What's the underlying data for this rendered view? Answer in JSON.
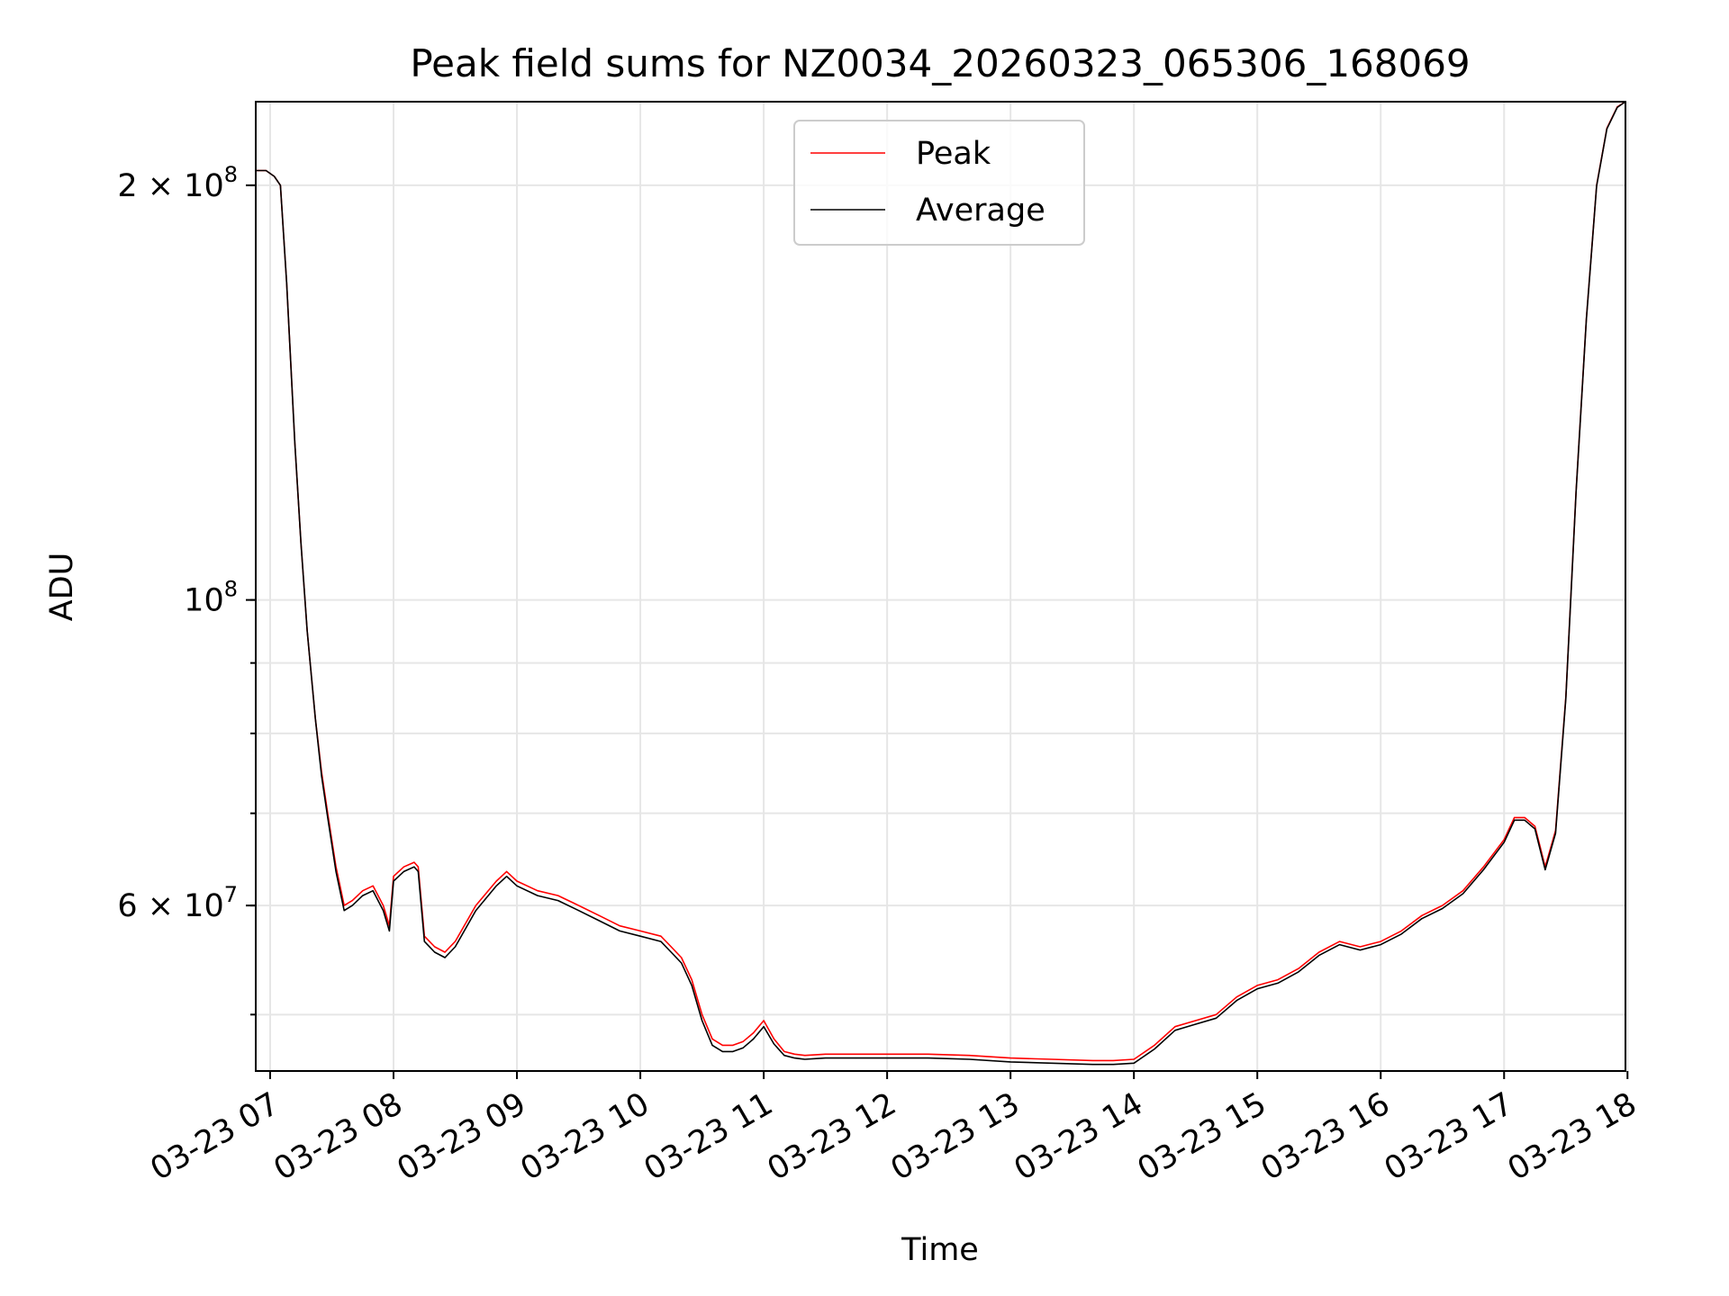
{
  "chart_data": {
    "type": "line",
    "title": "Peak field sums for NZ0034_20260323_065306_168069",
    "xlabel": "Time",
    "ylabel": "ADU",
    "y_scale": "log",
    "grid": true,
    "legend_position": "upper center",
    "xlim": [
      "2026-03-23 06:53",
      "2026-03-23 17:59"
    ],
    "ylim": [
      45500000,
      230000000
    ],
    "x_ticks": [
      "03-23 07",
      "03-23 08",
      "03-23 09",
      "03-23 10",
      "03-23 11",
      "03-23 12",
      "03-23 13",
      "03-23 14",
      "03-23 15",
      "03-23 16",
      "03-23 17",
      "03-23 18"
    ],
    "y_ticks": [
      {
        "value": 200000000,
        "base": "2 × 10",
        "exp": "8"
      },
      {
        "value": 100000000,
        "base": "10",
        "exp": "8"
      },
      {
        "value": 60000000,
        "base": "6 × 10",
        "exp": "7"
      }
    ],
    "series": [
      {
        "name": "Peak",
        "color": "#ff0000",
        "x": [
          "2026-03-23 06:53",
          "2026-03-23 06:58",
          "2026-03-23 07:02",
          "2026-03-23 07:05",
          "2026-03-23 07:08",
          "2026-03-23 07:12",
          "2026-03-23 07:15",
          "2026-03-23 07:18",
          "2026-03-23 07:22",
          "2026-03-23 07:25",
          "2026-03-23 07:28",
          "2026-03-23 07:32",
          "2026-03-23 07:36",
          "2026-03-23 07:40",
          "2026-03-23 07:45",
          "2026-03-23 07:50",
          "2026-03-23 07:55",
          "2026-03-23 07:58",
          "2026-03-23 08:00",
          "2026-03-23 08:05",
          "2026-03-23 08:10",
          "2026-03-23 08:12",
          "2026-03-23 08:15",
          "2026-03-23 08:20",
          "2026-03-23 08:25",
          "2026-03-23 08:30",
          "2026-03-23 08:40",
          "2026-03-23 08:50",
          "2026-03-23 08:55",
          "2026-03-23 09:00",
          "2026-03-23 09:10",
          "2026-03-23 09:20",
          "2026-03-23 09:30",
          "2026-03-23 09:40",
          "2026-03-23 09:50",
          "2026-03-23 10:00",
          "2026-03-23 10:10",
          "2026-03-23 10:15",
          "2026-03-23 10:20",
          "2026-03-23 10:25",
          "2026-03-23 10:30",
          "2026-03-23 10:35",
          "2026-03-23 10:40",
          "2026-03-23 10:45",
          "2026-03-23 10:50",
          "2026-03-23 10:55",
          "2026-03-23 11:00",
          "2026-03-23 11:05",
          "2026-03-23 11:10",
          "2026-03-23 11:15",
          "2026-03-23 11:20",
          "2026-03-23 11:30",
          "2026-03-23 11:45",
          "2026-03-23 12:00",
          "2026-03-23 12:20",
          "2026-03-23 12:40",
          "2026-03-23 13:00",
          "2026-03-23 13:20",
          "2026-03-23 13:40",
          "2026-03-23 13:50",
          "2026-03-23 14:00",
          "2026-03-23 14:10",
          "2026-03-23 14:20",
          "2026-03-23 14:30",
          "2026-03-23 14:40",
          "2026-03-23 14:50",
          "2026-03-23 15:00",
          "2026-03-23 15:10",
          "2026-03-23 15:20",
          "2026-03-23 15:30",
          "2026-03-23 15:40",
          "2026-03-23 15:50",
          "2026-03-23 16:00",
          "2026-03-23 16:10",
          "2026-03-23 16:20",
          "2026-03-23 16:30",
          "2026-03-23 16:40",
          "2026-03-23 16:50",
          "2026-03-23 17:00",
          "2026-03-23 17:05",
          "2026-03-23 17:10",
          "2026-03-23 17:15",
          "2026-03-23 17:20",
          "2026-03-23 17:25",
          "2026-03-23 17:30",
          "2026-03-23 17:35",
          "2026-03-23 17:40",
          "2026-03-23 17:45",
          "2026-03-23 17:50",
          "2026-03-23 17:55",
          "2026-03-23 17:59"
        ],
        "y": [
          205000000,
          205000000,
          203000000,
          200000000,
          170000000,
          130000000,
          110000000,
          95000000,
          82000000,
          75000000,
          70000000,
          64000000,
          60000000,
          60500000,
          61500000,
          62000000,
          60000000,
          58000000,
          63000000,
          64000000,
          64500000,
          64000000,
          57000000,
          56000000,
          55500000,
          56500000,
          60000000,
          62500000,
          63500000,
          62500000,
          61500000,
          61000000,
          60000000,
          59000000,
          58000000,
          57500000,
          57000000,
          56000000,
          55000000,
          53000000,
          50000000,
          48000000,
          47500000,
          47500000,
          47800000,
          48500000,
          49500000,
          48000000,
          47000000,
          46800000,
          46700000,
          46800000,
          46800000,
          46800000,
          46800000,
          46700000,
          46500000,
          46400000,
          46300000,
          46300000,
          46400000,
          47500000,
          49000000,
          49500000,
          50000000,
          51500000,
          52500000,
          53000000,
          54000000,
          55500000,
          56500000,
          56000000,
          56500000,
          57500000,
          59000000,
          60000000,
          61500000,
          64000000,
          67000000,
          69500000,
          69500000,
          68500000,
          64000000,
          68000000,
          85000000,
          120000000,
          160000000,
          200000000,
          220000000,
          228000000,
          230000000
        ]
      },
      {
        "name": "Average",
        "color": "#000000",
        "x": [
          "2026-03-23 06:53",
          "2026-03-23 06:58",
          "2026-03-23 07:02",
          "2026-03-23 07:05",
          "2026-03-23 07:08",
          "2026-03-23 07:12",
          "2026-03-23 07:15",
          "2026-03-23 07:18",
          "2026-03-23 07:22",
          "2026-03-23 07:25",
          "2026-03-23 07:28",
          "2026-03-23 07:32",
          "2026-03-23 07:36",
          "2026-03-23 07:40",
          "2026-03-23 07:45",
          "2026-03-23 07:50",
          "2026-03-23 07:55",
          "2026-03-23 07:58",
          "2026-03-23 08:00",
          "2026-03-23 08:05",
          "2026-03-23 08:10",
          "2026-03-23 08:12",
          "2026-03-23 08:15",
          "2026-03-23 08:20",
          "2026-03-23 08:25",
          "2026-03-23 08:30",
          "2026-03-23 08:40",
          "2026-03-23 08:50",
          "2026-03-23 08:55",
          "2026-03-23 09:00",
          "2026-03-23 09:10",
          "2026-03-23 09:20",
          "2026-03-23 09:30",
          "2026-03-23 09:40",
          "2026-03-23 09:50",
          "2026-03-23 10:00",
          "2026-03-23 10:10",
          "2026-03-23 10:15",
          "2026-03-23 10:20",
          "2026-03-23 10:25",
          "2026-03-23 10:30",
          "2026-03-23 10:35",
          "2026-03-23 10:40",
          "2026-03-23 10:45",
          "2026-03-23 10:50",
          "2026-03-23 10:55",
          "2026-03-23 11:00",
          "2026-03-23 11:05",
          "2026-03-23 11:10",
          "2026-03-23 11:15",
          "2026-03-23 11:20",
          "2026-03-23 11:30",
          "2026-03-23 11:45",
          "2026-03-23 12:00",
          "2026-03-23 12:20",
          "2026-03-23 12:40",
          "2026-03-23 13:00",
          "2026-03-23 13:20",
          "2026-03-23 13:40",
          "2026-03-23 13:50",
          "2026-03-23 14:00",
          "2026-03-23 14:10",
          "2026-03-23 14:20",
          "2026-03-23 14:30",
          "2026-03-23 14:40",
          "2026-03-23 14:50",
          "2026-03-23 15:00",
          "2026-03-23 15:10",
          "2026-03-23 15:20",
          "2026-03-23 15:30",
          "2026-03-23 15:40",
          "2026-03-23 15:50",
          "2026-03-23 16:00",
          "2026-03-23 16:10",
          "2026-03-23 16:20",
          "2026-03-23 16:30",
          "2026-03-23 16:40",
          "2026-03-23 16:50",
          "2026-03-23 17:00",
          "2026-03-23 17:05",
          "2026-03-23 17:10",
          "2026-03-23 17:15",
          "2026-03-23 17:20",
          "2026-03-23 17:25",
          "2026-03-23 17:30",
          "2026-03-23 17:35",
          "2026-03-23 17:40",
          "2026-03-23 17:45",
          "2026-03-23 17:50",
          "2026-03-23 17:55",
          "2026-03-23 17:59"
        ],
        "y": [
          205000000,
          205000000,
          203000000,
          200000000,
          170000000,
          130000000,
          110000000,
          95000000,
          82000000,
          74500000,
          69500000,
          63500000,
          59500000,
          60000000,
          61000000,
          61500000,
          59500000,
          57500000,
          62500000,
          63500000,
          64000000,
          63500000,
          56500000,
          55500000,
          55000000,
          56000000,
          59500000,
          62000000,
          63000000,
          62000000,
          61000000,
          60500000,
          59500000,
          58500000,
          57500000,
          57000000,
          56500000,
          55500000,
          54500000,
          52500000,
          49500000,
          47500000,
          47000000,
          47000000,
          47300000,
          48000000,
          49000000,
          47600000,
          46700000,
          46500000,
          46400000,
          46500000,
          46500000,
          46500000,
          46500000,
          46400000,
          46200000,
          46100000,
          46000000,
          46000000,
          46100000,
          47200000,
          48700000,
          49200000,
          49700000,
          51200000,
          52200000,
          52700000,
          53700000,
          55200000,
          56200000,
          55700000,
          56200000,
          57200000,
          58700000,
          59700000,
          61200000,
          63700000,
          66700000,
          69200000,
          69200000,
          68200000,
          63700000,
          67700000,
          84800000,
          119800000,
          159800000,
          199800000,
          219800000,
          227800000,
          230000000
        ]
      }
    ]
  }
}
